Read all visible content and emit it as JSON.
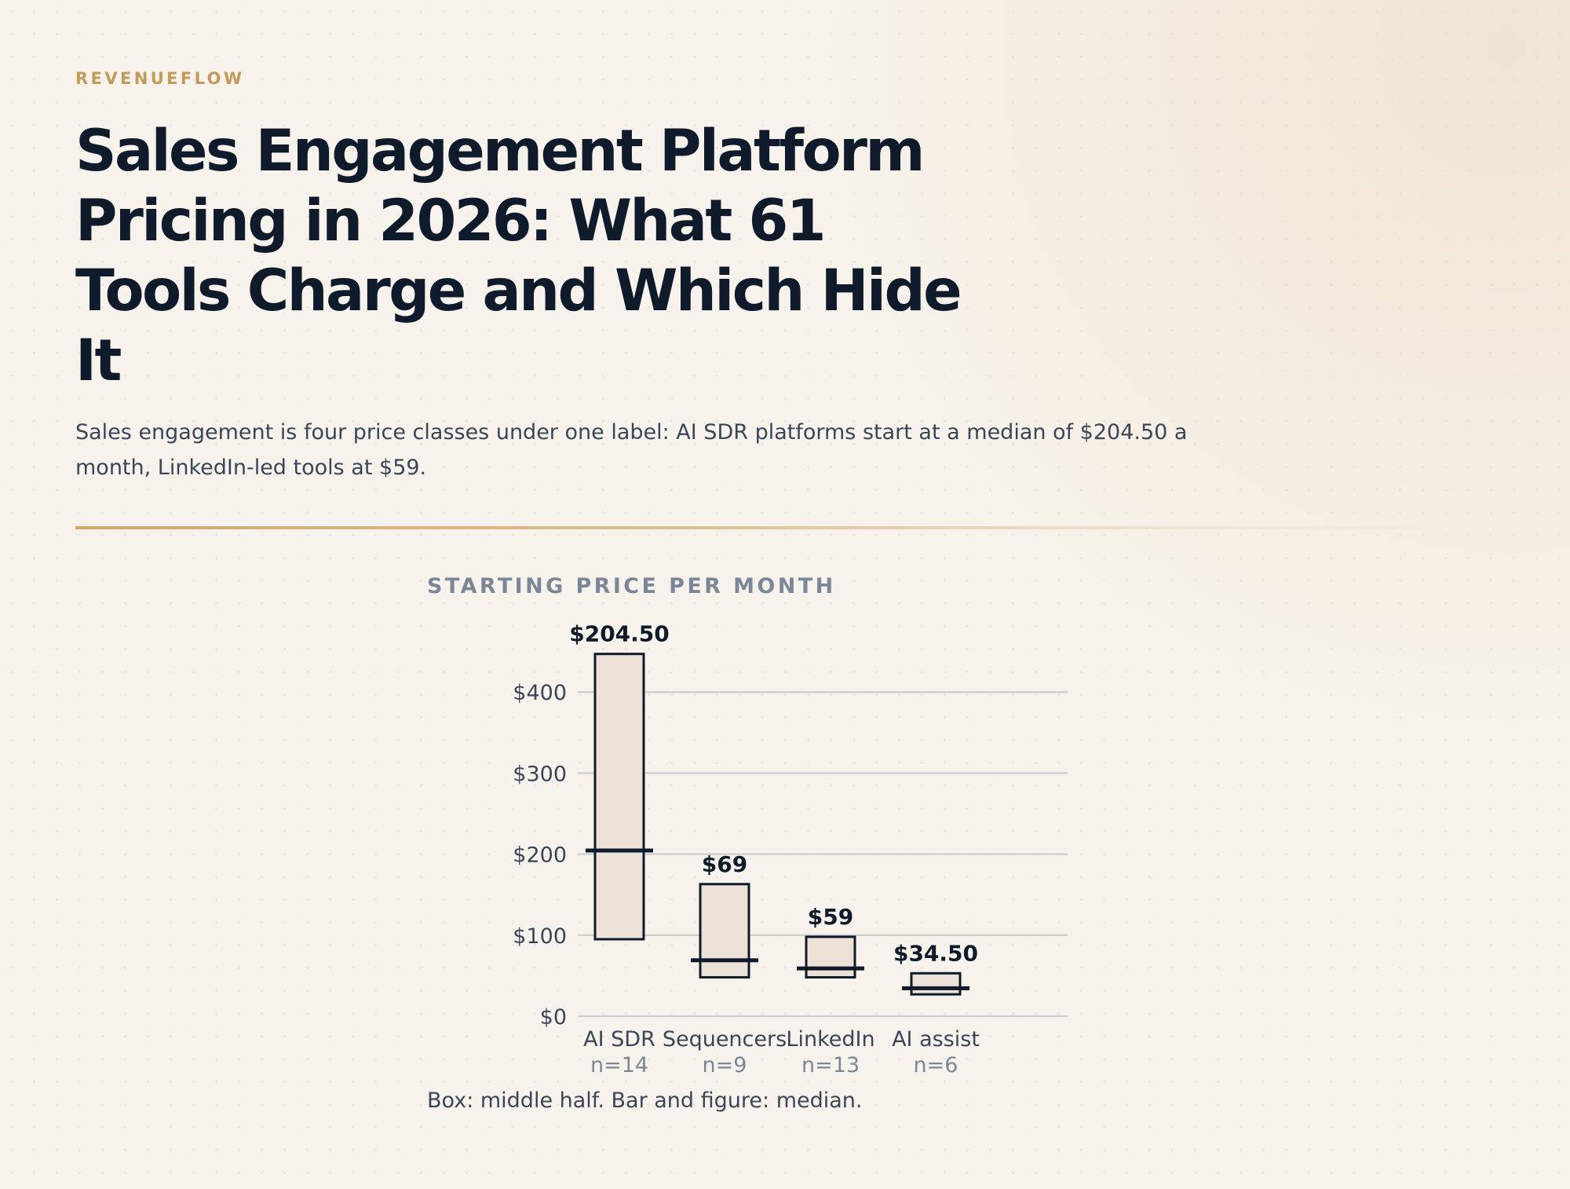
{
  "brand": "REVENUEFLOW",
  "title": "Sales Engagement Platform Pricing in 2026: What 61 Tools Charge and Which Hide It",
  "subtitle": "Sales engagement is four price classes under one label: AI SDR platforms start at a median of $204.50 a month, LinkedIn-led tools at $59.",
  "chart_label": "STARTING PRICE PER MONTH",
  "note": "Box: middle half. Bar and figure: median.",
  "colors": {
    "accent": "#c29a5a",
    "box_fill": "#ece2d8",
    "ink": "#0f1b2a",
    "grid": "#c9cccf",
    "muted": "#7b8796"
  },
  "chart_data": {
    "type": "box",
    "title": "STARTING PRICE PER MONTH",
    "ylim": [
      0,
      500
    ],
    "y_ticks": [
      0,
      100,
      200,
      300,
      400
    ],
    "y_tick_labels": [
      "$0",
      "$100",
      "$200",
      "$300",
      "$400"
    ],
    "grid": true,
    "series": [
      {
        "category": "AI SDR",
        "n_label": "n=14",
        "q1": 95,
        "q3": 447,
        "median": 204.5,
        "median_label": "$204.50"
      },
      {
        "category": "Sequencers",
        "n_label": "n=9",
        "q1": 48,
        "q3": 163,
        "median": 69,
        "median_label": "$69"
      },
      {
        "category": "LinkedIn",
        "n_label": "n=13",
        "q1": 48,
        "q3": 98,
        "median": 59,
        "median_label": "$59"
      },
      {
        "category": "AI assist",
        "n_label": "n=6",
        "q1": 27,
        "q3": 53,
        "median": 34.5,
        "median_label": "$34.50"
      }
    ],
    "caption": "Box: middle half. Bar and figure: median."
  }
}
